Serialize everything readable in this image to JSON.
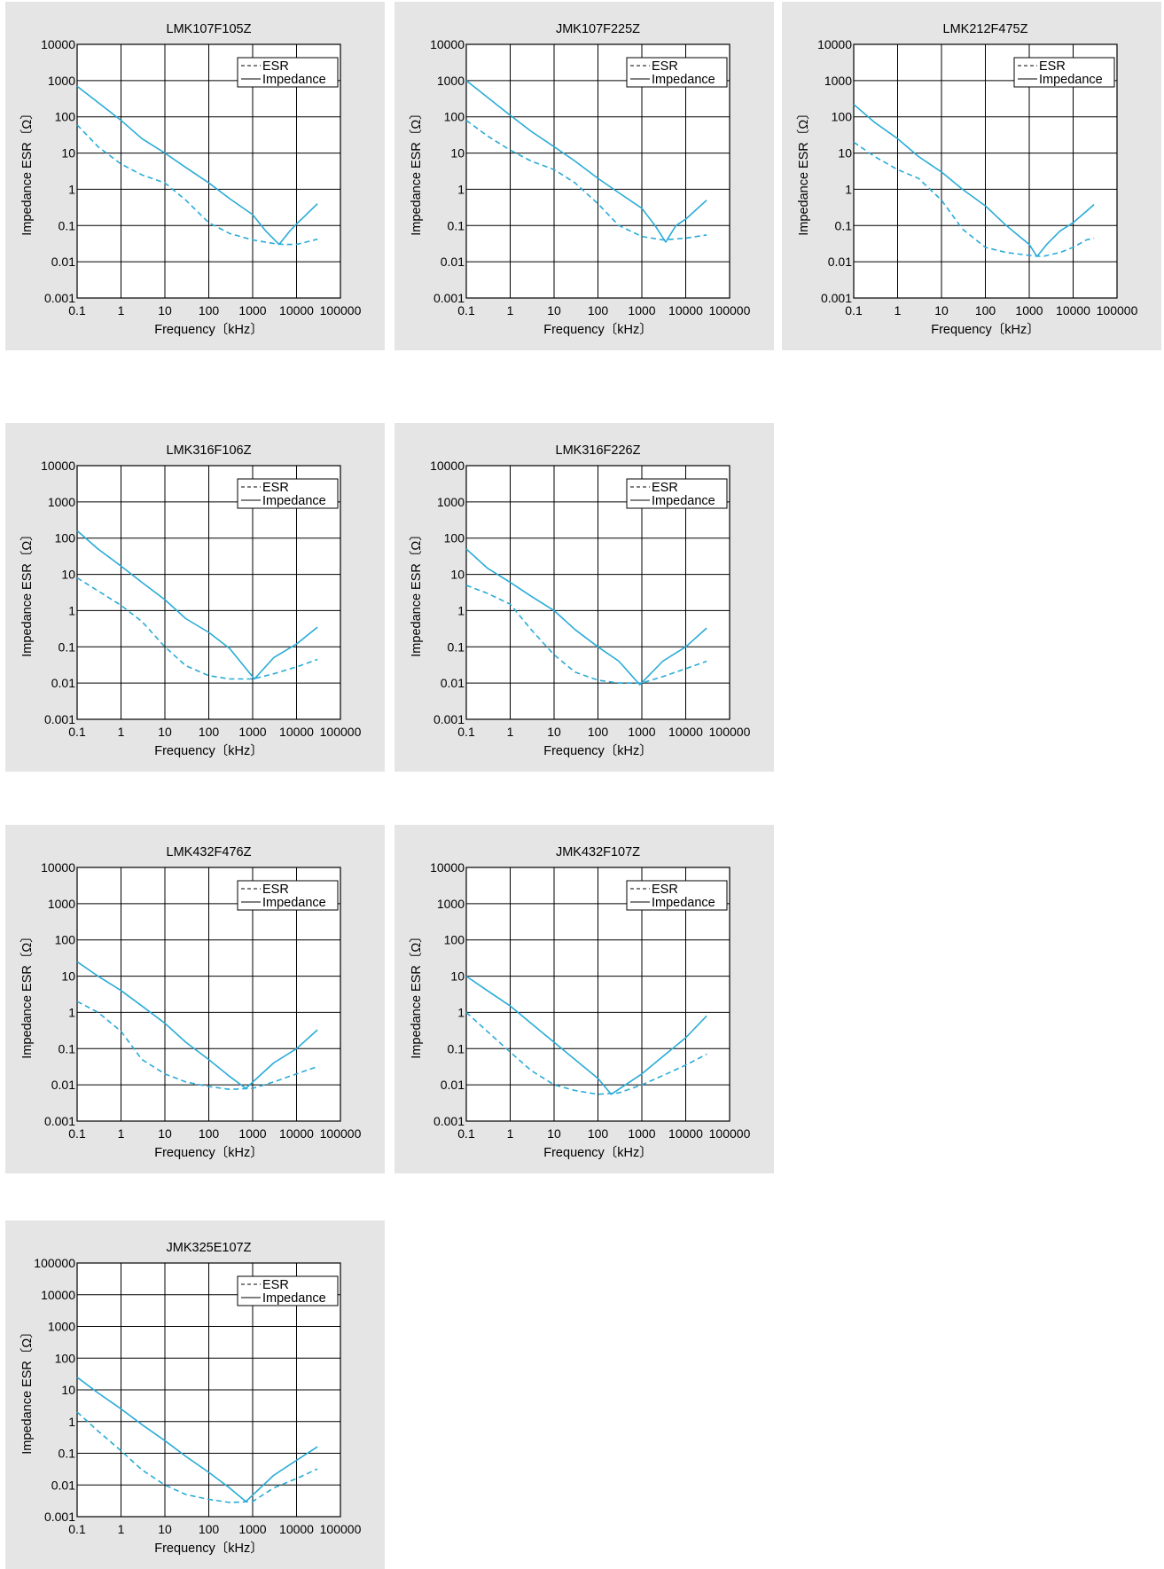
{
  "chart_data": [
    {
      "type": "line",
      "title": "LMK107F105Z",
      "xlabel": "Frequency〔kHz〕",
      "ylabel": "Impedance ESR〔Ω〕",
      "xscale": "log",
      "yscale": "log",
      "xlim": [
        0.1,
        100000
      ],
      "ylim": [
        0.001,
        10000
      ],
      "xticks": [
        "0.1",
        "1",
        "10",
        "100",
        "1000",
        "10000",
        "100000"
      ],
      "yticks": [
        "0.001",
        "0.01",
        "0.1",
        "1",
        "10",
        "100",
        "1000",
        "10000"
      ],
      "grid": true,
      "legend": "top-right",
      "line_color": "#29abd7",
      "series": [
        {
          "name": "ESR",
          "style": "dashed",
          "x": [
            0.1,
            0.3,
            1,
            3,
            10,
            30,
            100,
            300,
            1000,
            3000,
            5000,
            10000,
            30000
          ],
          "y": [
            60,
            15,
            5,
            2.5,
            1.5,
            0.5,
            0.12,
            0.06,
            0.04,
            0.032,
            0.03,
            0.03,
            0.042
          ]
        },
        {
          "name": "Impedance",
          "style": "solid",
          "x": [
            0.1,
            0.3,
            1,
            3,
            10,
            30,
            100,
            300,
            1000,
            2000,
            4000,
            7000,
            10000,
            30000
          ],
          "y": [
            700,
            250,
            80,
            25,
            10,
            4,
            1.5,
            0.55,
            0.2,
            0.07,
            0.03,
            0.07,
            0.11,
            0.4
          ]
        }
      ]
    },
    {
      "type": "line",
      "title": "JMK107F225Z",
      "xlabel": "Frequency〔kHz〕",
      "ylabel": "Impedance ESR〔Ω〕",
      "xscale": "log",
      "yscale": "log",
      "xlim": [
        0.1,
        100000
      ],
      "ylim": [
        0.001,
        10000
      ],
      "xticks": [
        "0.1",
        "1",
        "10",
        "100",
        "1000",
        "10000",
        "100000"
      ],
      "yticks": [
        "0.001",
        "0.01",
        "0.1",
        "1",
        "10",
        "100",
        "1000",
        "10000"
      ],
      "grid": true,
      "legend": "top-right",
      "line_color": "#29abd7",
      "series": [
        {
          "name": "ESR",
          "style": "dashed",
          "x": [
            0.1,
            0.3,
            1,
            3,
            10,
            30,
            100,
            300,
            1000,
            3000,
            10000,
            30000
          ],
          "y": [
            80,
            30,
            12,
            6,
            3.5,
            1.5,
            0.4,
            0.1,
            0.05,
            0.04,
            0.045,
            0.055
          ]
        },
        {
          "name": "Impedance",
          "style": "solid",
          "x": [
            0.1,
            0.3,
            1,
            3,
            10,
            30,
            100,
            300,
            1000,
            2000,
            3500,
            6000,
            10000,
            30000
          ],
          "y": [
            1000,
            350,
            110,
            40,
            15,
            6,
            2,
            0.8,
            0.3,
            0.1,
            0.035,
            0.1,
            0.15,
            0.5
          ]
        }
      ]
    },
    {
      "type": "line",
      "title": "LMK212F475Z",
      "xlabel": "Frequency〔kHz〕",
      "ylabel": "Impedance ESR〔Ω〕",
      "xscale": "log",
      "yscale": "log",
      "xlim": [
        0.1,
        100000
      ],
      "ylim": [
        0.001,
        10000
      ],
      "xticks": [
        "0.1",
        "1",
        "10",
        "100",
        "1000",
        "10000",
        "100000"
      ],
      "yticks": [
        "0.001",
        "0.01",
        "0.1",
        "1",
        "10",
        "100",
        "1000",
        "10000"
      ],
      "grid": true,
      "legend": "top-right",
      "line_color": "#29abd7",
      "series": [
        {
          "name": "ESR",
          "style": "dashed",
          "x": [
            0.1,
            0.3,
            1,
            3,
            10,
            30,
            100,
            300,
            1000,
            2000,
            5000,
            10000,
            20000,
            30000
          ],
          "y": [
            20,
            8,
            3.5,
            2,
            0.5,
            0.08,
            0.025,
            0.018,
            0.015,
            0.014,
            0.018,
            0.025,
            0.04,
            0.045
          ]
        },
        {
          "name": "Impedance",
          "style": "solid",
          "x": [
            0.1,
            0.3,
            1,
            3,
            10,
            30,
            100,
            300,
            1000,
            1500,
            2500,
            5000,
            10000,
            30000
          ],
          "y": [
            220,
            70,
            25,
            8,
            3,
            1,
            0.35,
            0.1,
            0.03,
            0.014,
            0.03,
            0.07,
            0.12,
            0.38
          ]
        }
      ]
    },
    {
      "type": "line",
      "title": "LMK316F106Z",
      "xlabel": "Frequency〔kHz〕",
      "ylabel": "Impedance ESR〔Ω〕",
      "xscale": "log",
      "yscale": "log",
      "xlim": [
        0.1,
        100000
      ],
      "ylim": [
        0.001,
        10000
      ],
      "xticks": [
        "0.1",
        "1",
        "10",
        "100",
        "1000",
        "10000",
        "100000"
      ],
      "yticks": [
        "0.001",
        "0.01",
        "0.1",
        "1",
        "10",
        "100",
        "1000",
        "10000"
      ],
      "grid": true,
      "legend": "top-right",
      "line_color": "#29abd7",
      "series": [
        {
          "name": "ESR",
          "style": "dashed",
          "x": [
            0.1,
            0.3,
            1,
            3,
            10,
            30,
            100,
            300,
            1000,
            3000,
            10000,
            30000
          ],
          "y": [
            8,
            3.5,
            1.4,
            0.5,
            0.1,
            0.03,
            0.016,
            0.013,
            0.013,
            0.018,
            0.028,
            0.045
          ]
        },
        {
          "name": "Impedance",
          "style": "solid",
          "x": [
            0.1,
            0.3,
            1,
            3,
            10,
            30,
            100,
            300,
            1100,
            3000,
            10000,
            30000
          ],
          "y": [
            160,
            50,
            17,
            6,
            2,
            0.6,
            0.25,
            0.09,
            0.013,
            0.05,
            0.12,
            0.35
          ]
        }
      ]
    },
    {
      "type": "line",
      "title": "LMK316F226Z",
      "xlabel": "Frequency〔kHz〕",
      "ylabel": "Impedance ESR〔Ω〕",
      "xscale": "log",
      "yscale": "log",
      "xlim": [
        0.1,
        100000
      ],
      "ylim": [
        0.001,
        10000
      ],
      "xticks": [
        "0.1",
        "1",
        "10",
        "100",
        "1000",
        "10000",
        "100000"
      ],
      "yticks": [
        "0.001",
        "0.01",
        "0.1",
        "1",
        "10",
        "100",
        "1000",
        "10000"
      ],
      "grid": true,
      "legend": "top-right",
      "line_color": "#29abd7",
      "series": [
        {
          "name": "ESR",
          "style": "dashed",
          "x": [
            0.1,
            0.3,
            1,
            3,
            10,
            30,
            100,
            300,
            1000,
            3000,
            10000,
            30000
          ],
          "y": [
            5,
            3,
            1.5,
            0.3,
            0.06,
            0.02,
            0.012,
            0.01,
            0.01,
            0.015,
            0.025,
            0.04
          ]
        },
        {
          "name": "Impedance",
          "style": "solid",
          "x": [
            0.1,
            0.3,
            1,
            3,
            10,
            30,
            100,
            300,
            900,
            3000,
            10000,
            30000
          ],
          "y": [
            50,
            15,
            6,
            2.5,
            1,
            0.3,
            0.1,
            0.04,
            0.009,
            0.04,
            0.1,
            0.33
          ]
        }
      ]
    },
    {
      "type": "line",
      "title": "LMK432F476Z",
      "xlabel": "Frequency〔kHz〕",
      "ylabel": "Impedance ESR〔Ω〕",
      "xscale": "log",
      "yscale": "log",
      "xlim": [
        0.1,
        100000
      ],
      "ylim": [
        0.001,
        10000
      ],
      "xticks": [
        "0.1",
        "1",
        "10",
        "100",
        "1000",
        "10000",
        "100000"
      ],
      "yticks": [
        "0.001",
        "0.01",
        "0.1",
        "1",
        "10",
        "100",
        "1000",
        "10000"
      ],
      "grid": true,
      "legend": "top-right",
      "line_color": "#29abd7",
      "series": [
        {
          "name": "ESR",
          "style": "dashed",
          "x": [
            0.1,
            0.3,
            1,
            3,
            10,
            30,
            100,
            300,
            1000,
            3000,
            10000,
            30000
          ],
          "y": [
            2,
            1,
            0.3,
            0.05,
            0.02,
            0.012,
            0.009,
            0.0075,
            0.008,
            0.012,
            0.02,
            0.032
          ]
        },
        {
          "name": "Impedance",
          "style": "solid",
          "x": [
            0.1,
            0.3,
            1,
            3,
            10,
            30,
            100,
            300,
            700,
            3000,
            10000,
            30000
          ],
          "y": [
            25,
            10,
            4,
            1.5,
            0.5,
            0.15,
            0.05,
            0.017,
            0.008,
            0.04,
            0.1,
            0.33
          ]
        }
      ]
    },
    {
      "type": "line",
      "title": "JMK432F107Z",
      "xlabel": "Frequency〔kHz〕",
      "ylabel": "Impedance ESR〔Ω〕",
      "xscale": "log",
      "yscale": "log",
      "xlim": [
        0.1,
        100000
      ],
      "ylim": [
        0.001,
        10000
      ],
      "xticks": [
        "0.1",
        "1",
        "10",
        "100",
        "1000",
        "10000",
        "100000"
      ],
      "yticks": [
        "0.001",
        "0.01",
        "0.1",
        "1",
        "10",
        "100",
        "1000",
        "10000"
      ],
      "grid": true,
      "legend": "top-right",
      "line_color": "#29abd7",
      "series": [
        {
          "name": "ESR",
          "style": "dashed",
          "x": [
            0.1,
            0.3,
            1,
            3,
            10,
            30,
            100,
            300,
            1000,
            3000,
            10000,
            30000
          ],
          "y": [
            1,
            0.3,
            0.08,
            0.025,
            0.01,
            0.007,
            0.0055,
            0.006,
            0.01,
            0.018,
            0.035,
            0.07
          ]
        },
        {
          "name": "Impedance",
          "style": "solid",
          "x": [
            0.1,
            0.3,
            1,
            3,
            10,
            30,
            100,
            200,
            1000,
            3000,
            10000,
            30000
          ],
          "y": [
            10,
            4,
            1.5,
            0.5,
            0.15,
            0.05,
            0.015,
            0.0055,
            0.02,
            0.06,
            0.2,
            0.8
          ]
        }
      ]
    },
    {
      "type": "line",
      "title": "JMK325E107Z",
      "xlabel": "Frequency〔kHz〕",
      "ylabel": "Impedance ESR〔Ω〕",
      "xscale": "log",
      "yscale": "log",
      "xlim": [
        0.1,
        100000
      ],
      "ylim": [
        0.001,
        100000
      ],
      "xticks": [
        "0.1",
        "1",
        "10",
        "100",
        "1000",
        "10000",
        "100000"
      ],
      "yticks": [
        "0.001",
        "0.01",
        "0.1",
        "1",
        "10",
        "100",
        "1000",
        "10000",
        "100000"
      ],
      "grid": true,
      "legend": "top-right",
      "line_color": "#29abd7",
      "series": [
        {
          "name": "ESR",
          "style": "dashed",
          "x": [
            0.1,
            0.3,
            1,
            3,
            10,
            30,
            100,
            300,
            1000,
            3000,
            10000,
            30000
          ],
          "y": [
            2,
            0.5,
            0.12,
            0.03,
            0.01,
            0.005,
            0.0035,
            0.0028,
            0.003,
            0.008,
            0.016,
            0.032
          ]
        },
        {
          "name": "Impedance",
          "style": "solid",
          "x": [
            0.1,
            0.3,
            1,
            3,
            10,
            30,
            100,
            300,
            700,
            3000,
            10000,
            30000
          ],
          "y": [
            25,
            8,
            2.5,
            0.8,
            0.25,
            0.08,
            0.025,
            0.008,
            0.003,
            0.02,
            0.06,
            0.16
          ]
        }
      ]
    }
  ]
}
